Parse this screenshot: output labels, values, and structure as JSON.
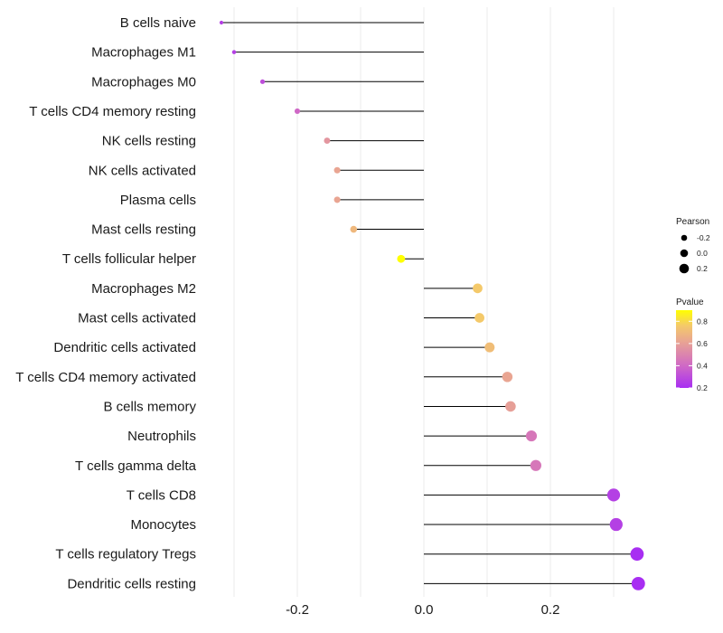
{
  "chart_data": {
    "type": "lollipop",
    "categories": [
      "B cells naive",
      "Macrophages M1",
      "Macrophages M0",
      "T cells CD4 memory resting",
      "NK cells resting",
      "NK cells activated",
      "Plasma cells",
      "Mast cells resting",
      "T cells follicular helper",
      "Macrophages M2",
      "Mast cells activated",
      "Dendritic cells activated",
      "T cells CD4 memory activated",
      "B cells memory",
      "Neutrophils",
      "T cells gamma delta",
      "T cells CD8",
      "Monocytes",
      "T cells regulatory  Tregs",
      "Dendritic cells resting"
    ],
    "pearson": [
      -0.32,
      -0.3,
      -0.255,
      -0.2,
      -0.153,
      -0.137,
      -0.137,
      -0.111,
      -0.036,
      0.085,
      0.088,
      0.104,
      0.132,
      0.137,
      0.17,
      0.177,
      0.3,
      0.304,
      0.337,
      0.339
    ],
    "pvalue": [
      0.25,
      0.25,
      0.3,
      0.4,
      0.55,
      0.6,
      0.6,
      0.68,
      0.93,
      0.75,
      0.75,
      0.7,
      0.6,
      0.58,
      0.45,
      0.45,
      0.25,
      0.25,
      0.18,
      0.18
    ],
    "xlim": [
      -0.33,
      0.35
    ],
    "xticks": [
      -0.2,
      0.0,
      0.2
    ],
    "xtick_labels": [
      "-0.2",
      "0.0",
      "0.2"
    ],
    "grid": true,
    "legend_position": "right",
    "size_legend": {
      "title": "Pearson",
      "values": [
        -0.2,
        0.0,
        0.2
      ],
      "labels": [
        "-0.2",
        "0.0",
        "0.2"
      ]
    },
    "color_legend": {
      "title": "Pvalue",
      "range": [
        0.2,
        0.9
      ],
      "ticks": [
        0.8,
        0.6,
        0.4,
        0.2
      ],
      "labels": [
        "0.8",
        "0.6",
        "0.4",
        "0.2"
      ]
    }
  },
  "colors": {
    "gradient_stops": [
      "#a82ef2",
      "#cf68c6",
      "#e9a592",
      "#f4c96a",
      "#ffff00"
    ],
    "segment": "#000000",
    "grid": "#ebebeb",
    "background": "#ffffff"
  }
}
